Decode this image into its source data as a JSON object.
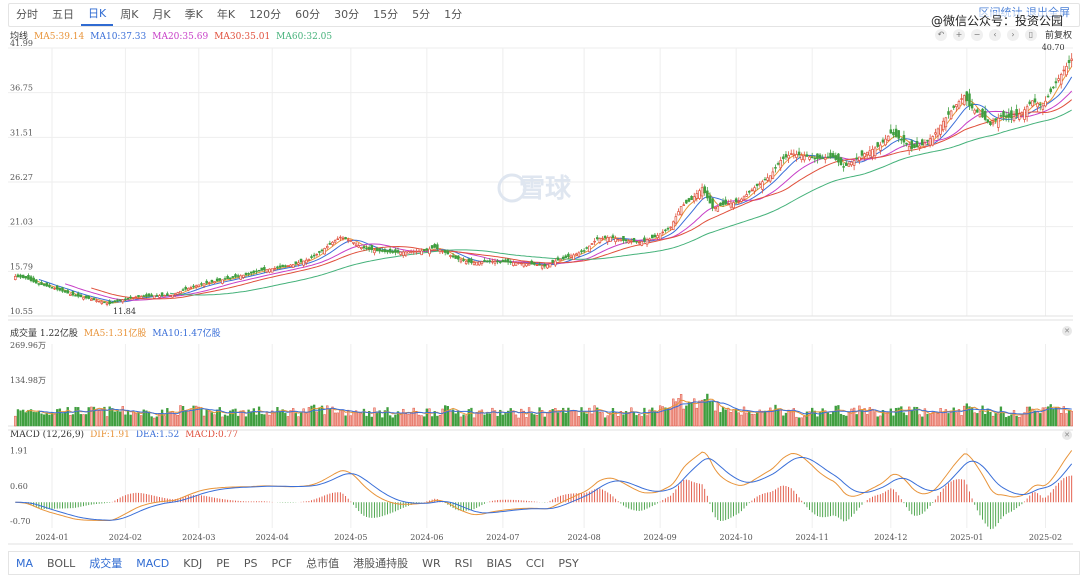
{
  "period_tabs": [
    "分时",
    "五日",
    "日K",
    "周K",
    "月K",
    "季K",
    "年K",
    "120分",
    "60分",
    "30分",
    "15分",
    "5分",
    "1分"
  ],
  "active_period": "日K",
  "top_right_links": "区间统计  退出全屏",
  "watermark_text": "@微信公众号：投资公园",
  "brand_watermark": "雪球",
  "price_fq": "前复权",
  "ma_legend": {
    "label": "均线",
    "items": [
      {
        "text": "MA5:39.14",
        "color": "#e8943a"
      },
      {
        "text": "MA10:37.33",
        "color": "#3a6fd8"
      },
      {
        "text": "MA20:35.69",
        "color": "#c73fc7"
      },
      {
        "text": "MA30:35.01",
        "color": "#e0503c"
      },
      {
        "text": "MA60:32.05",
        "color": "#46b27b"
      }
    ]
  },
  "vol_legend": {
    "label": "成交量 1.22亿股",
    "items": [
      {
        "text": "MA5:1.31亿股",
        "color": "#e8943a"
      },
      {
        "text": "MA10:1.47亿股",
        "color": "#3a6fd8"
      }
    ]
  },
  "macd_legend": {
    "label": "MACD (12,26,9)",
    "items": [
      {
        "text": "DIF:1.91",
        "color": "#e8943a"
      },
      {
        "text": "DEA:1.52",
        "color": "#3a6fd8"
      },
      {
        "text": "MACD:0.77",
        "color": "#e0503c"
      }
    ]
  },
  "indicator_tabs": [
    "MA",
    "BOLL",
    "成交量",
    "MACD",
    "KDJ",
    "PE",
    "PS",
    "PCF",
    "总市值",
    "港股通持股",
    "WR",
    "RSI",
    "BIAS",
    "CCI",
    "PSY"
  ],
  "active_indicators": [
    "MA",
    "成交量",
    "MACD"
  ],
  "colors": {
    "up": "#e0503c",
    "down": "#3f9e3f",
    "grid": "#eeeeee"
  },
  "chart_data": [
    {
      "type": "candlestick",
      "title": "",
      "y_ticks": [
        "41.99",
        "36.75",
        "31.51",
        "26.27",
        "21.03",
        "15.79",
        "10.55"
      ],
      "ylim": [
        10.55,
        41.99
      ],
      "max_label": "40.70",
      "min_label": "11.84",
      "x_ticks": [
        "2024-01",
        "2024-02",
        "2024-03",
        "2024-04",
        "2024-05",
        "2024-06",
        "2024-07",
        "2024-08",
        "2024-09",
        "2024-10",
        "2024-11",
        "2024-12",
        "2025-01",
        "2025-02"
      ],
      "close_keypoints": [
        [
          0,
          15.2
        ],
        [
          4,
          15.0
        ],
        [
          8,
          14.4
        ],
        [
          15,
          13.8
        ],
        [
          22,
          13.0
        ],
        [
          28,
          12.6
        ],
        [
          33,
          12.2
        ],
        [
          36,
          12.0
        ],
        [
          40,
          12.4
        ],
        [
          46,
          12.8
        ],
        [
          52,
          12.9
        ],
        [
          60,
          13.0
        ],
        [
          64,
          13.6
        ],
        [
          70,
          14.2
        ],
        [
          76,
          14.6
        ],
        [
          82,
          15.0
        ],
        [
          88,
          15.4
        ],
        [
          94,
          15.9
        ],
        [
          100,
          16.2
        ],
        [
          106,
          16.6
        ],
        [
          112,
          17.2
        ],
        [
          116,
          18.0
        ],
        [
          121,
          19.2
        ],
        [
          124,
          19.8
        ],
        [
          128,
          19.4
        ],
        [
          132,
          18.6
        ],
        [
          138,
          18.2
        ],
        [
          144,
          18.0
        ],
        [
          150,
          18.1
        ],
        [
          156,
          18.2
        ],
        [
          160,
          18.6
        ],
        [
          164,
          18.0
        ],
        [
          168,
          17.3
        ],
        [
          174,
          16.8
        ],
        [
          180,
          17.0
        ],
        [
          186,
          16.9
        ],
        [
          192,
          16.8
        ],
        [
          198,
          16.6
        ],
        [
          202,
          16.4
        ],
        [
          206,
          17.0
        ],
        [
          212,
          17.6
        ],
        [
          217,
          18.2
        ],
        [
          222,
          19.6
        ],
        [
          227,
          19.8
        ],
        [
          232,
          19.4
        ],
        [
          238,
          19.2
        ],
        [
          244,
          19.8
        ],
        [
          250,
          21.0
        ],
        [
          254,
          23.4
        ],
        [
          258,
          24.2
        ],
        [
          262,
          25.6
        ],
        [
          266,
          23.2
        ],
        [
          270,
          23.6
        ],
        [
          276,
          24.0
        ],
        [
          282,
          25.6
        ],
        [
          288,
          27.0
        ],
        [
          292,
          28.8
        ],
        [
          296,
          29.6
        ],
        [
          300,
          29.4
        ],
        [
          306,
          29.0
        ],
        [
          312,
          29.2
        ],
        [
          316,
          28.0
        ],
        [
          320,
          28.8
        ],
        [
          324,
          29.6
        ],
        [
          330,
          30.6
        ],
        [
          334,
          32.0
        ],
        [
          338,
          31.2
        ],
        [
          342,
          30.2
        ],
        [
          346,
          30.6
        ],
        [
          350,
          31.6
        ],
        [
          354,
          33.4
        ],
        [
          358,
          35.0
        ],
        [
          362,
          36.4
        ],
        [
          364,
          35.2
        ],
        [
          368,
          34.2
        ],
        [
          372,
          33.0
        ],
        [
          376,
          34.0
        ],
        [
          380,
          33.8
        ],
        [
          384,
          34.4
        ],
        [
          388,
          35.8
        ],
        [
          392,
          35.2
        ],
        [
          396,
          37.4
        ],
        [
          400,
          39.4
        ],
        [
          403,
          40.7
        ]
      ],
      "volume_max_label": "269.96万",
      "volume_mid_label": "134.98万",
      "volume_ylim": [
        0,
        269.96
      ],
      "macd_ticks": [
        "1.91",
        "0.60",
        "-0.70"
      ],
      "macd_ylim": [
        -0.95,
        2.0
      ]
    }
  ]
}
